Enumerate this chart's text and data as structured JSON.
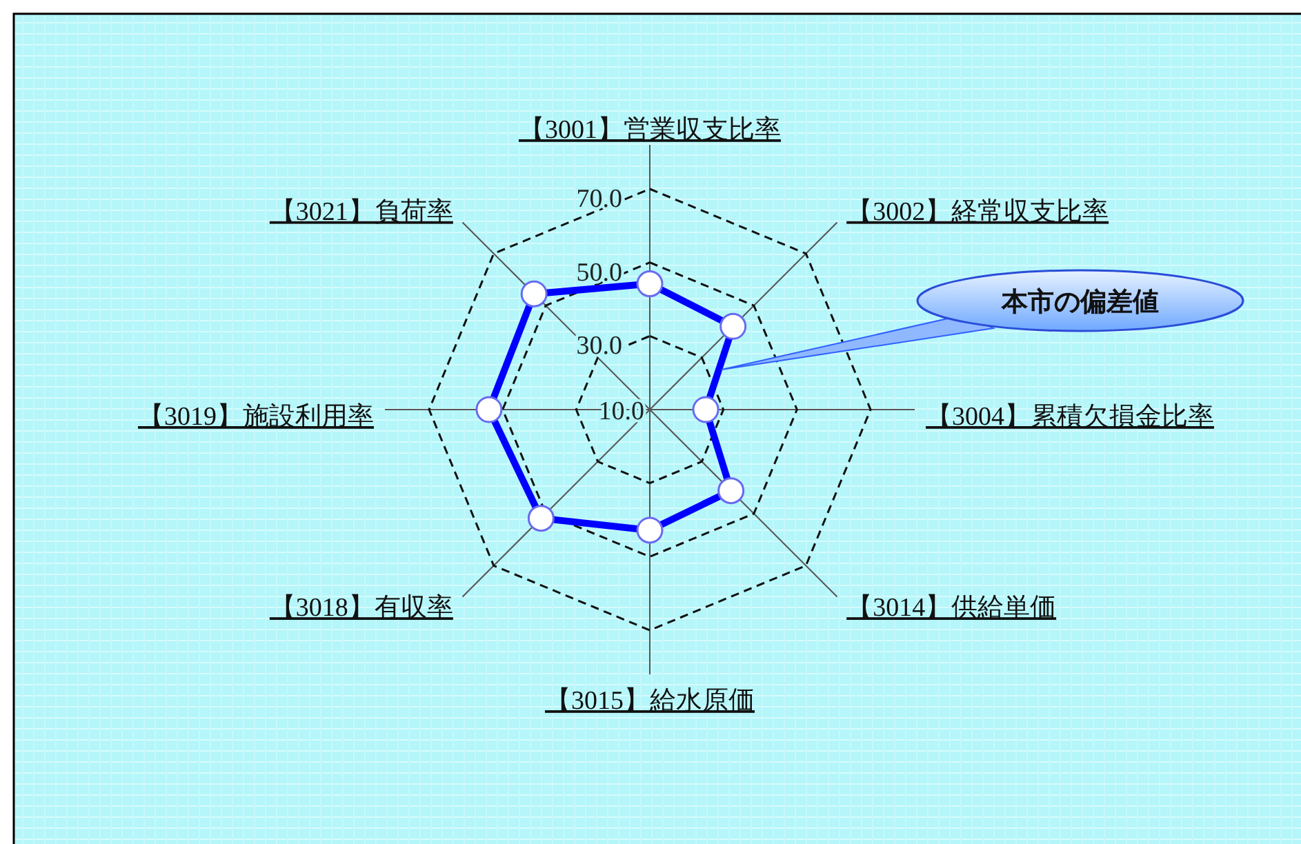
{
  "chart_data": {
    "type": "radar",
    "categories": [
      "【3001】営業収支比率",
      "【3002】経常収支比率",
      "【3004】累積欠損金比率",
      "【3014】供給単価",
      "【3015】給水原価",
      "【3018】有収率",
      "【3019】施設利用率",
      "【3021】負荷率"
    ],
    "series": [
      {
        "color": "#0000ff",
        "values": [
          44.2,
          42.0,
          25.2,
          41.2,
          42.8,
          51.8,
          53.7,
          54.5
        ]
      }
    ],
    "ylim": [
      10,
      70
    ],
    "yticks": [
      {
        "value": 10,
        "label": "10.0"
      },
      {
        "value": 30,
        "label": "30.0"
      },
      {
        "value": 50,
        "label": "50.0"
      },
      {
        "value": 70,
        "label": "70.0"
      }
    ],
    "grid": true,
    "marker": "circle",
    "line_style": "solid",
    "annotations": [
      "本市の偏差値"
    ]
  }
}
